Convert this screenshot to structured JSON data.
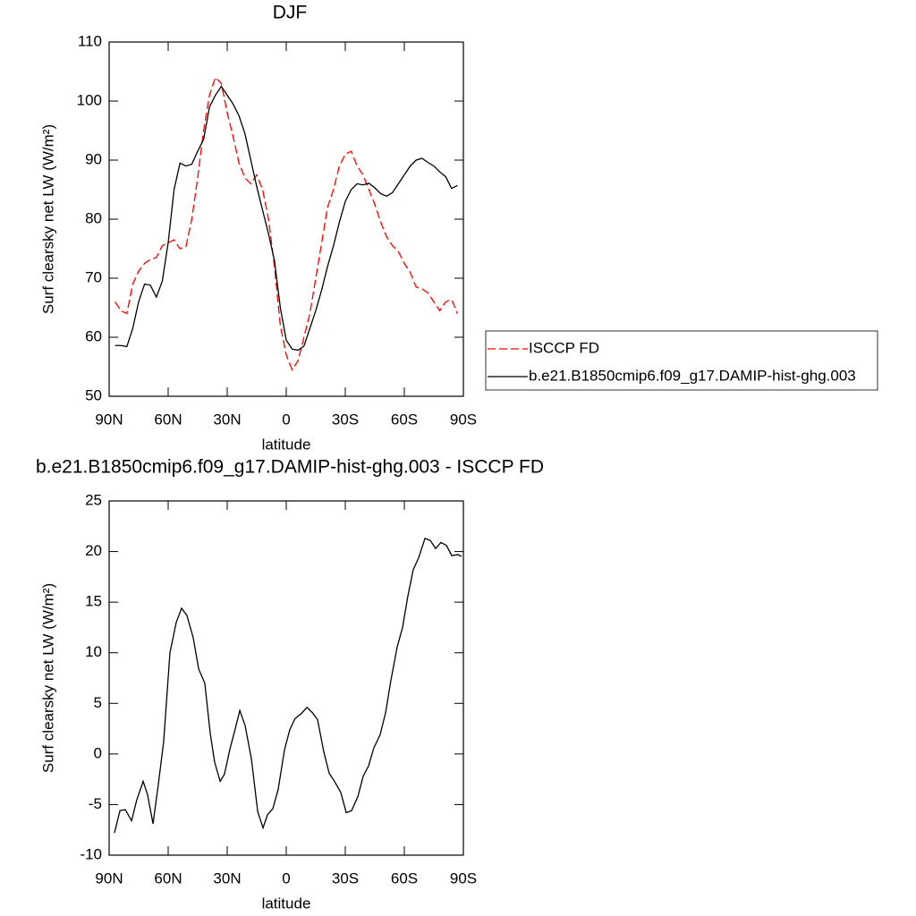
{
  "chart_data": [
    {
      "type": "line",
      "title": "DJF",
      "xlabel": "latitude",
      "ylabel": "Surf clearsky net LW (W/m²)",
      "xlim": [
        90,
        -90
      ],
      "xticks": [
        {
          "value": 90,
          "label": "90N"
        },
        {
          "value": 60,
          "label": "60N"
        },
        {
          "value": 30,
          "label": "30N"
        },
        0,
        {
          "value": -30,
          "label": "30S"
        },
        {
          "value": -60,
          "label": "60S"
        },
        {
          "value": -90,
          "label": "90S"
        }
      ],
      "ylim": [
        50,
        110
      ],
      "yticks": [
        50,
        60,
        70,
        80,
        90,
        100,
        110
      ],
      "legend": "right",
      "x": [
        87,
        84,
        81,
        78,
        75,
        72,
        69,
        66,
        63,
        60,
        57,
        54,
        51,
        48,
        45,
        42,
        39,
        36,
        33,
        30,
        27,
        24,
        21,
        18,
        15,
        12,
        9,
        6,
        3,
        0,
        -3,
        -6,
        -9,
        -12,
        -15,
        -18,
        -21,
        -24,
        -27,
        -30,
        -33,
        -36,
        -39,
        -42,
        -45,
        -48,
        -51,
        -54,
        -57,
        -60,
        -63,
        -66,
        -69,
        -72,
        -75,
        -78,
        -81,
        -84,
        -87
      ],
      "series": [
        {
          "name": "ISCCP FD",
          "color": "#ff0000",
          "style": "dashed",
          "values": [
            66,
            64.5,
            64,
            69,
            71.2,
            72.5,
            73.2,
            73.5,
            75.5,
            76,
            76.5,
            75,
            75.3,
            80,
            87,
            95,
            101,
            104,
            103,
            98,
            94,
            89.5,
            87,
            86,
            87.5,
            85,
            80,
            72,
            62,
            57,
            54.5,
            56,
            60,
            64,
            70,
            76,
            82,
            85,
            89,
            91,
            91.5,
            89,
            87.5,
            85,
            82.5,
            79.5,
            77,
            75.5,
            74.5,
            72.5,
            71,
            68.5,
            68.2,
            67.5,
            66,
            64.5,
            66,
            66.4,
            64
          ]
        },
        {
          "name": "b.e21.B1850cmip6.f09_g17.DAMIP-hist-ghg.003",
          "color": "#000000",
          "style": "solid",
          "values": [
            58.6,
            58.6,
            58.4,
            61.5,
            66,
            69,
            68.8,
            66.8,
            69.5,
            76,
            85,
            89.5,
            89,
            89.3,
            91.5,
            93.5,
            99,
            101,
            102.5,
            101,
            99.5,
            97.5,
            94.5,
            90,
            85.5,
            81.5,
            77.5,
            73,
            65,
            59.5,
            58,
            57.8,
            58.5,
            61.5,
            64.5,
            68,
            72,
            75.5,
            79.5,
            83,
            85,
            86,
            85.8,
            86.1,
            85.3,
            84.3,
            83.9,
            84.5,
            86,
            87.5,
            89,
            90,
            90.3,
            89.6,
            89,
            88,
            87.2,
            85.2,
            85.7
          ]
        }
      ]
    },
    {
      "type": "line",
      "title": "b.e21.B1850cmip6.f09_g17.DAMIP-hist-ghg.003 - ISCCP FD",
      "xlabel": "latitude",
      "ylabel": "Surf clearsky net LW (W/m²)",
      "xlim": [
        90,
        -90
      ],
      "xticks": [
        {
          "value": 90,
          "label": "90N"
        },
        {
          "value": 60,
          "label": "60N"
        },
        {
          "value": 30,
          "label": "30N"
        },
        0,
        {
          "value": -30,
          "label": "30S"
        },
        {
          "value": -60,
          "label": "60S"
        },
        {
          "value": -90,
          "label": "90S"
        }
      ],
      "ylim": [
        -10,
        25
      ],
      "yticks": [
        -10,
        -5,
        0,
        5,
        10,
        15,
        20,
        25
      ],
      "x": [
        87.3,
        84.5,
        81.8,
        78.6,
        75.9,
        72.7,
        70.5,
        67.7,
        65,
        62.3,
        59.1,
        55.9,
        53.2,
        50.5,
        47.3,
        44.5,
        41.4,
        38.6,
        36.4,
        33.6,
        31.4,
        28.6,
        25.9,
        23.6,
        20.9,
        17.7,
        14.5,
        11.8,
        9.5,
        6.8,
        4.1,
        0.9,
        -1.8,
        -4.5,
        -7.7,
        -10.5,
        -13.2,
        -15.9,
        -19.1,
        -21.8,
        -24.5,
        -27.7,
        -30.5,
        -33.2,
        -36.4,
        -39.1,
        -41.8,
        -44.5,
        -47.7,
        -50.5,
        -53.2,
        -56.4,
        -59.1,
        -61.8,
        -64.5,
        -67.3,
        -70.5,
        -73.2,
        -75.9,
        -78.6,
        -81.4,
        -84.1,
        -87.3,
        -89
      ],
      "series": [
        {
          "color": "#000000",
          "style": "solid",
          "values": [
            -7.8,
            -5.6,
            -5.5,
            -6.6,
            -4.5,
            -2.7,
            -4,
            -6.9,
            -3,
            1.2,
            10,
            13,
            14.4,
            13.7,
            11.5,
            8.4,
            7,
            2,
            -0.8,
            -2.7,
            -2,
            0.5,
            2.5,
            4.3,
            2.8,
            -0.5,
            -5.7,
            -7.3,
            -6,
            -5.4,
            -3.5,
            0.4,
            2.4,
            3.5,
            4,
            4.6,
            4.1,
            3.4,
            0.2,
            -1.9,
            -2.7,
            -3.8,
            -5.8,
            -5.6,
            -4.2,
            -2.2,
            -1.2,
            0.6,
            1.9,
            4.1,
            7.3,
            10.6,
            12.5,
            15.6,
            18.2,
            19.4,
            21.3,
            21.1,
            20.3,
            20.9,
            20.6,
            19.6,
            19.7,
            19.5
          ]
        }
      ]
    }
  ]
}
